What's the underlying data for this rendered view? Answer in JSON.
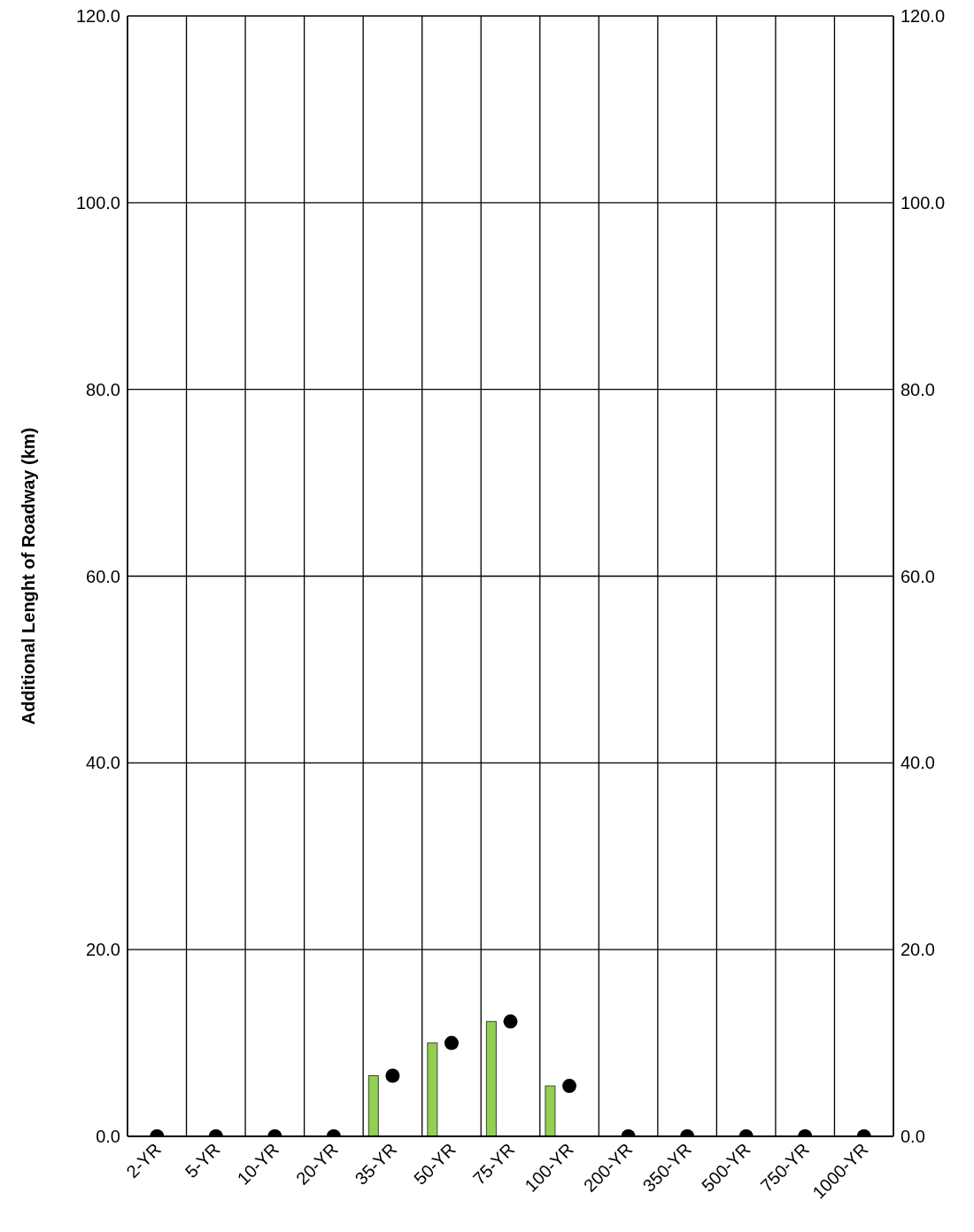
{
  "chart_data": {
    "type": "bar",
    "ylabel": "Additional Lenght of Roadway (km)",
    "categories": [
      "2-YR",
      "5-YR",
      "10-YR",
      "20-YR",
      "35-YR",
      "50-YR",
      "75-YR",
      "100-YR",
      "200-YR",
      "350-YR",
      "500-YR",
      "750-YR",
      "1000-YR"
    ],
    "series": [
      {
        "color": "#92d050",
        "values": [
          0,
          0,
          0,
          0,
          6.5,
          10.0,
          12.3,
          5.4,
          0,
          0,
          0,
          0,
          0
        ]
      },
      {
        "type": "scatter",
        "color": "#000000",
        "x": [
          "2-YR",
          "5-YR",
          "10-YR",
          "20-YR",
          "35-YR",
          "50-YR",
          "75-YR",
          "100-YR",
          "200-YR",
          "350-YR",
          "500-YR",
          "750-YR",
          "1000-YR"
        ],
        "values": [
          0,
          0,
          0,
          0,
          6.5,
          10.0,
          12.3,
          5.4,
          0,
          0,
          0,
          0,
          0
        ]
      }
    ],
    "ylim": [
      0,
      120
    ],
    "yticks": [
      {
        "value": 0,
        "label": "0.0"
      },
      {
        "value": 20,
        "label": "20.0"
      },
      {
        "value": 40,
        "label": "40.0"
      },
      {
        "value": 60,
        "label": "60.0"
      },
      {
        "value": 80,
        "label": "80.0"
      },
      {
        "value": 100,
        "label": "100.0"
      },
      {
        "value": 120,
        "label": "120.0"
      }
    ],
    "y2lim": [
      0,
      120
    ],
    "y2ticks": [
      {
        "value": 0,
        "label": "0.0"
      },
      {
        "value": 20,
        "label": "20.0"
      },
      {
        "value": 40,
        "label": "40.0"
      },
      {
        "value": 60,
        "label": "60.0"
      },
      {
        "value": 80,
        "label": "80.0"
      },
      {
        "value": 100,
        "label": "100.0"
      },
      {
        "value": 120,
        "label": "120.0"
      }
    ],
    "grid": true,
    "legend": false,
    "marker": "circle"
  }
}
